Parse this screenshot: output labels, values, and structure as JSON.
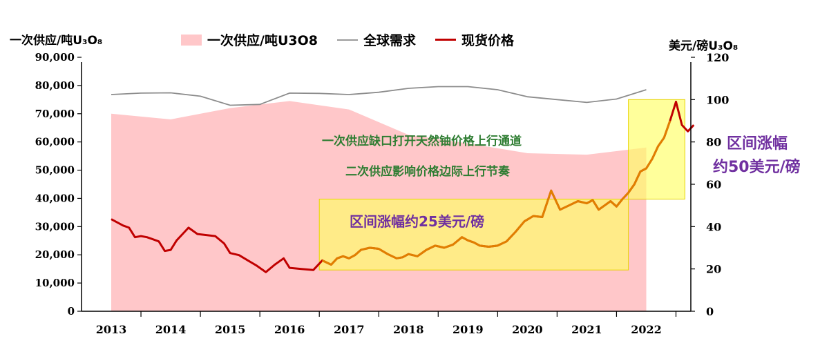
{
  "chart_data": {
    "type": "line",
    "left_axis_title": "一次供应/吨U₃O₈",
    "right_axis_title": "美元/磅U₃O₈",
    "categories": [
      "2013",
      "2014",
      "2015",
      "2016",
      "2017",
      "2018",
      "2019",
      "2020",
      "2021",
      "2022"
    ],
    "ylim_left": [
      0,
      90000
    ],
    "yticks_left": [
      "90,000",
      "80,000",
      "70,000",
      "60,000",
      "50,000",
      "40,000",
      "30,000",
      "20,000",
      "10,000",
      "0"
    ],
    "ylim_right": [
      0,
      120
    ],
    "yticks_right": [
      "120",
      "100",
      "80",
      "60",
      "40",
      "20",
      "0"
    ],
    "legend": {
      "supply": "一次供应/吨U3O8",
      "demand": "全球需求",
      "price": "现货价格"
    },
    "colors": {
      "supply": "#ffc7c9",
      "demand": "#8c8c8c",
      "price": "#c00000",
      "price_highlight": "#e69500",
      "box": "#ffff66"
    },
    "series": [
      {
        "name": "一次供应/吨U3O8",
        "axis": "left",
        "x": [
          2013,
          2014,
          2015,
          2016,
          2017,
          2018,
          2019,
          2020,
          2021,
          2022
        ],
        "values": [
          70000,
          68000,
          72000,
          74500,
          71500,
          62500,
          59500,
          56000,
          55500,
          58000
        ]
      },
      {
        "name": "全球需求",
        "axis": "left",
        "x": [
          2013,
          2013.5,
          2014,
          2014.5,
          2015,
          2015.5,
          2016,
          2016.5,
          2017,
          2017.5,
          2018,
          2018.5,
          2019,
          2019.5,
          2020,
          2020.5,
          2021,
          2021.5,
          2022
        ],
        "values": [
          76800,
          77300,
          77400,
          76200,
          73000,
          73300,
          77300,
          77200,
          76800,
          77600,
          79000,
          79600,
          79600,
          78500,
          76000,
          75000,
          74000,
          75200,
          78500
        ]
      },
      {
        "name": "现货价格",
        "axis": "right",
        "x": [
          2013.0,
          2013.1,
          2013.2,
          2013.3,
          2013.4,
          2013.5,
          2013.6,
          2013.7,
          2013.8,
          2013.9,
          2014.0,
          2014.1,
          2014.2,
          2014.3,
          2014.45,
          2014.6,
          2014.75,
          2014.9,
          2015.0,
          2015.15,
          2015.3,
          2015.45,
          2015.6,
          2015.75,
          2015.9,
          2016.0,
          2016.2,
          2016.4,
          2016.55,
          2016.7,
          2016.8,
          2016.9,
          2017.0,
          2017.1,
          2017.2,
          2017.35,
          2017.5,
          2017.65,
          2017.8,
          2017.9,
          2018.0,
          2018.15,
          2018.3,
          2018.45,
          2018.6,
          2018.75,
          2018.9,
          2019.0,
          2019.1,
          2019.2,
          2019.35,
          2019.5,
          2019.65,
          2019.8,
          2019.95,
          2020.1,
          2020.25,
          2020.4,
          2020.55,
          2020.7,
          2020.85,
          2021.0,
          2021.1,
          2021.2,
          2021.3,
          2021.4,
          2021.5,
          2021.6,
          2021.7,
          2021.8,
          2021.9,
          2022.0,
          2022.1,
          2022.2,
          2022.3,
          2022.4,
          2022.5,
          2022.6,
          2022.7,
          2022.8
        ],
        "values": [
          43.5,
          42,
          40.5,
          39.5,
          35,
          35.5,
          35,
          34,
          33,
          28.5,
          29,
          33.5,
          36.5,
          39.5,
          36.5,
          36,
          35.5,
          32,
          27.5,
          26.5,
          24,
          21.5,
          18.5,
          22,
          25,
          20.5,
          20,
          19.5,
          24,
          22,
          25,
          26,
          25,
          26.5,
          29,
          30,
          29.5,
          27,
          25,
          25.5,
          27,
          26,
          29,
          31,
          30,
          31.5,
          35,
          33.5,
          32.5,
          31,
          30.5,
          31,
          33,
          37.5,
          42.5,
          45,
          44.5,
          57,
          48,
          50,
          52,
          51,
          52.5,
          48,
          50,
          52,
          49.5,
          53,
          56,
          60,
          66,
          67.5,
          72,
          78,
          82,
          90,
          99,
          88,
          85,
          88
        ],
        "highlight_from": 2016.5
      }
    ],
    "annotations": {
      "line1": "一次供应缺口打开天然铀价格上行通道",
      "line2": "二次供应影响价格边际上行节奏",
      "box1_label": "区间涨幅约25美元/磅",
      "box2_label_line1": "区间涨幅",
      "box2_label_line2": "约50美元/磅"
    }
  }
}
